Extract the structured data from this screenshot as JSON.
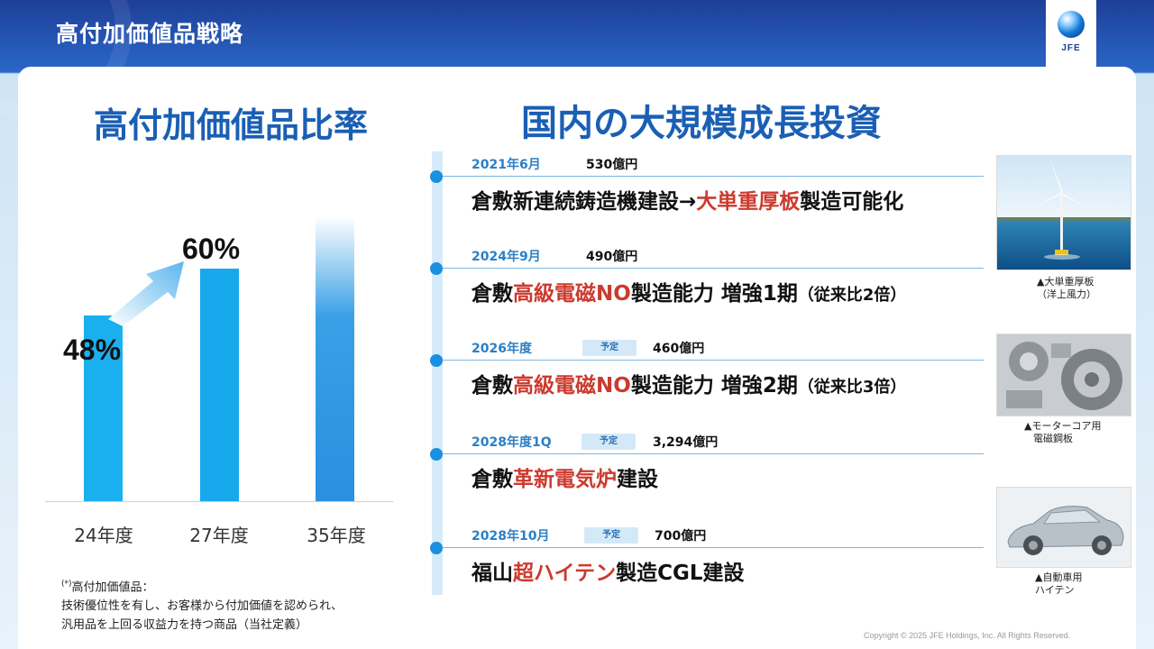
{
  "header": {
    "title": "高付加価値品戦略",
    "logo_text": "JFE"
  },
  "left": {
    "title": "高付加価値品比率",
    "footnote": {
      "head": "高付加価値品：",
      "mark": "(*)",
      "line1": "技術優位性を有し、お客様から付加価値を認められ、",
      "line2": "汎用品を上回る収益力を持つ商品（当社定義）"
    }
  },
  "chart_data": {
    "type": "bar",
    "categories": [
      "24年度",
      "27年度",
      "35年度"
    ],
    "values": [
      48,
      60,
      null
    ],
    "value_labels": [
      "48%",
      "60%",
      ""
    ],
    "colors": [
      "#1ab0ef",
      "#17a9ec",
      "#2a8fe0"
    ]
  },
  "right": {
    "title": "国内の大規模成長投資",
    "badge_label": "予定",
    "items": [
      {
        "date": "2021年6月",
        "amount": "530億円",
        "planned": false,
        "pre": "倉敷新連続鋳造機建設→",
        "hl": "大単重厚板",
        "post": "製造可能化",
        "tail": ""
      },
      {
        "date": "2024年9月",
        "amount": "490億円",
        "planned": false,
        "pre": "倉敷",
        "hl": "高級電磁NO",
        "post": "製造能力 増強1期",
        "tail": "（従来比2倍）"
      },
      {
        "date": "2026年度",
        "amount": "460億円",
        "planned": true,
        "pre": "倉敷",
        "hl": "高級電磁NO",
        "post": "製造能力 増強2期",
        "tail": "（従来比3倍）"
      },
      {
        "date": "2028年度1Q",
        "amount": "3,294億円",
        "planned": true,
        "pre": "倉敷",
        "hl": "革新電気炉",
        "post": "建設",
        "tail": ""
      },
      {
        "date": "2028年10月",
        "amount": "700億円",
        "planned": true,
        "pre": "福山",
        "hl": "超ハイテン",
        "post": "製造CGL建設",
        "tail": ""
      }
    ]
  },
  "photos": [
    {
      "caption1": "▲大単重厚板",
      "caption2": "（洋上風力）"
    },
    {
      "caption1": "▲モーターコア用",
      "caption2": "電磁鋼板"
    },
    {
      "caption1": "▲自動車用",
      "caption2": "ハイテン"
    }
  ],
  "copyright": "Copyright © 2025 JFE Holdings, Inc. All Rights Reserved."
}
